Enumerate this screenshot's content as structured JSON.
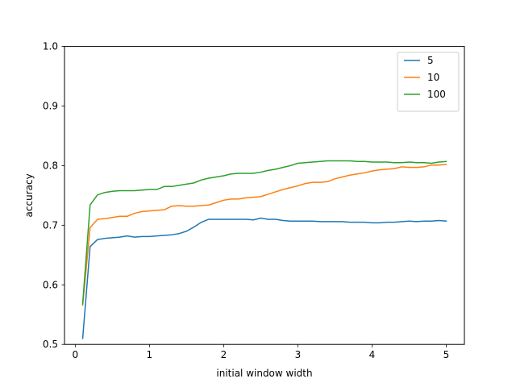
{
  "chart_data": {
    "type": "line",
    "title": "",
    "xlabel": "initial window width",
    "ylabel": "accuracy",
    "xlim": [
      -0.145,
      5.245
    ],
    "ylim": [
      0.5,
      1.0
    ],
    "xticks": [
      0,
      1,
      2,
      3,
      4,
      5
    ],
    "xtick_labels": [
      "0",
      "1",
      "2",
      "3",
      "4",
      "5"
    ],
    "yticks": [
      0.5,
      0.6,
      0.7,
      0.8,
      0.9,
      1.0
    ],
    "ytick_labels": [
      "0.5",
      "0.6",
      "0.7",
      "0.8",
      "0.9",
      "1.0"
    ],
    "grid": false,
    "legend_position": "top-right",
    "x": [
      0.1,
      0.2,
      0.3,
      0.4,
      0.5,
      0.6,
      0.7,
      0.8,
      0.9,
      1.0,
      1.1,
      1.2,
      1.3,
      1.4,
      1.5,
      1.6,
      1.7,
      1.8,
      1.9,
      2.0,
      2.1,
      2.2,
      2.3,
      2.4,
      2.5,
      2.6,
      2.7,
      2.8,
      2.9,
      3.0,
      3.1,
      3.2,
      3.3,
      3.4,
      3.5,
      3.6,
      3.7,
      3.8,
      3.9,
      4.0,
      4.1,
      4.2,
      4.3,
      4.4,
      4.5,
      4.6,
      4.7,
      4.8,
      4.9,
      5.0
    ],
    "series": [
      {
        "name": "5",
        "color": "#1f77b4",
        "values": [
          0.51,
          0.664,
          0.676,
          0.678,
          0.679,
          0.68,
          0.682,
          0.68,
          0.681,
          0.681,
          0.682,
          0.683,
          0.684,
          0.686,
          0.69,
          0.697,
          0.705,
          0.71,
          0.71,
          0.71,
          0.71,
          0.71,
          0.71,
          0.709,
          0.712,
          0.71,
          0.71,
          0.708,
          0.707,
          0.707,
          0.707,
          0.707,
          0.706,
          0.706,
          0.706,
          0.706,
          0.705,
          0.705,
          0.705,
          0.704,
          0.704,
          0.705,
          0.705,
          0.706,
          0.707,
          0.706,
          0.707,
          0.707,
          0.708,
          0.707
        ]
      },
      {
        "name": "10",
        "color": "#ff7f0e",
        "values": [
          0.566,
          0.696,
          0.71,
          0.711,
          0.713,
          0.715,
          0.715,
          0.72,
          0.723,
          0.724,
          0.725,
          0.726,
          0.732,
          0.733,
          0.732,
          0.732,
          0.733,
          0.734,
          0.738,
          0.742,
          0.744,
          0.744,
          0.746,
          0.747,
          0.748,
          0.752,
          0.756,
          0.76,
          0.763,
          0.766,
          0.77,
          0.772,
          0.772,
          0.773,
          0.778,
          0.781,
          0.784,
          0.786,
          0.788,
          0.791,
          0.793,
          0.794,
          0.795,
          0.798,
          0.797,
          0.797,
          0.798,
          0.801,
          0.801,
          0.802
        ]
      },
      {
        "name": "100",
        "color": "#2ca02c",
        "values": [
          0.568,
          0.734,
          0.751,
          0.755,
          0.757,
          0.758,
          0.758,
          0.758,
          0.759,
          0.76,
          0.76,
          0.765,
          0.765,
          0.767,
          0.769,
          0.771,
          0.776,
          0.779,
          0.781,
          0.783,
          0.786,
          0.787,
          0.787,
          0.787,
          0.789,
          0.792,
          0.794,
          0.797,
          0.8,
          0.804,
          0.805,
          0.806,
          0.807,
          0.808,
          0.808,
          0.808,
          0.808,
          0.807,
          0.807,
          0.806,
          0.806,
          0.806,
          0.805,
          0.805,
          0.806,
          0.805,
          0.805,
          0.804,
          0.806,
          0.807
        ]
      }
    ]
  }
}
